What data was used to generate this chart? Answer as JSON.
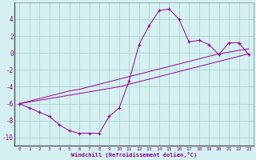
{
  "xlabel": "Windchill (Refroidissement éolien,°C)",
  "background_color": "#d4f0f0",
  "grid_color": "#b0c8c8",
  "line_color": "#990099",
  "x_hours": [
    0,
    1,
    2,
    3,
    4,
    5,
    6,
    7,
    8,
    9,
    10,
    11,
    12,
    13,
    14,
    15,
    16,
    17,
    18,
    19,
    20,
    21,
    22,
    23
  ],
  "windchill": [
    -6.0,
    -6.5,
    -7.0,
    -7.5,
    -8.5,
    -9.2,
    -9.5,
    -9.5,
    -9.5,
    -7.5,
    -6.5,
    -3.3,
    1.0,
    3.2,
    5.0,
    5.2,
    4.0,
    1.3,
    1.5,
    1.0,
    -0.2,
    1.2,
    1.2,
    -0.2
  ],
  "trend1": [
    -6.0,
    -5.7,
    -5.4,
    -5.1,
    -4.8,
    -4.5,
    -4.3,
    -4.0,
    -3.7,
    -3.4,
    -3.1,
    -2.8,
    -2.5,
    -2.2,
    -1.9,
    -1.6,
    -1.3,
    -1.0,
    -0.7,
    -0.4,
    -0.1,
    0.1,
    0.3,
    0.5
  ],
  "trend2": [
    -6.0,
    -5.8,
    -5.6,
    -5.4,
    -5.2,
    -5.0,
    -4.8,
    -4.6,
    -4.4,
    -4.2,
    -4.0,
    -3.7,
    -3.4,
    -3.1,
    -2.8,
    -2.5,
    -2.2,
    -1.9,
    -1.6,
    -1.3,
    -1.0,
    -0.7,
    -0.4,
    -0.1
  ],
  "ylim": [
    -11,
    6
  ],
  "xlim": [
    -0.5,
    23.5
  ],
  "yticks": [
    -10,
    -8,
    -6,
    -4,
    -2,
    0,
    2,
    4
  ],
  "xticks": [
    0,
    1,
    2,
    3,
    4,
    5,
    6,
    7,
    8,
    9,
    10,
    11,
    12,
    13,
    14,
    15,
    16,
    17,
    18,
    19,
    20,
    21,
    22,
    23
  ],
  "tick_fontsize": 4.5,
  "label_fontsize": 5.0,
  "ytick_fontsize": 5.5
}
